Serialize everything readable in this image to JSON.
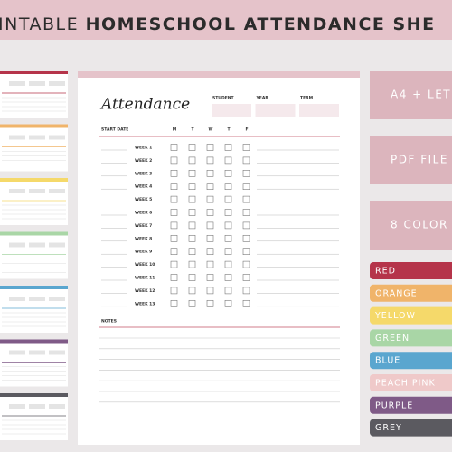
{
  "banner": {
    "title_light": "INTABLE",
    "title_bold": "HOMESCHOOL ATTENDANCE SHE"
  },
  "sheet": {
    "title": "Attendance",
    "fields": [
      "STUDENT",
      "YEAR",
      "TERM"
    ],
    "start_date": "START DATE",
    "days": [
      "M",
      "T",
      "W",
      "T",
      "F"
    ],
    "weeks": [
      "WEEK 1",
      "WEEK 2",
      "WEEK 3",
      "WEEK 4",
      "WEEK 5",
      "WEEK 6",
      "WEEK 7",
      "WEEK 8",
      "WEEK 9",
      "WEEK 10",
      "WEEK 11",
      "WEEK 12",
      "WEEK 13"
    ],
    "notes": "NOTES"
  },
  "features": [
    "A4 + LET",
    "PDF FILE",
    "8 COLOR"
  ],
  "colors": [
    {
      "name": "RED",
      "color": "#b5344a"
    },
    {
      "name": "ORANGE",
      "color": "#f0b46a"
    },
    {
      "name": "YELLOW",
      "color": "#f5d96a"
    },
    {
      "name": "GREEN",
      "color": "#a9d6a6"
    },
    {
      "name": "BLUE",
      "color": "#5aa6cf"
    },
    {
      "name": "PEACH PINK",
      "color": "#efc9c9"
    },
    {
      "name": "PURPLE",
      "color": "#7f5a87"
    },
    {
      "name": "GREY",
      "color": "#5b5a60"
    }
  ]
}
